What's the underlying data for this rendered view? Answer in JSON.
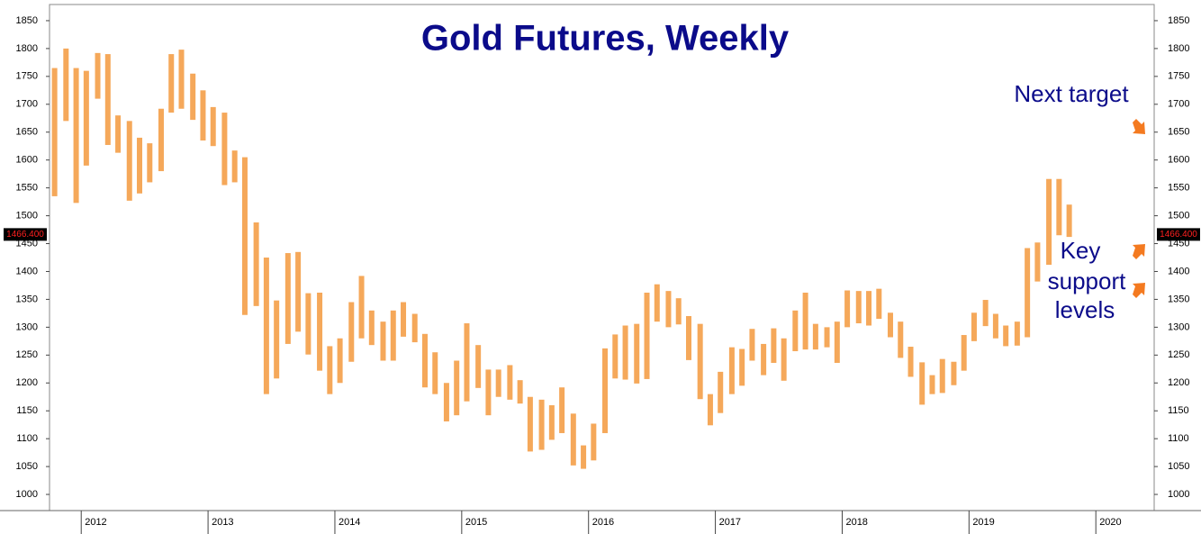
{
  "chart_data": {
    "type": "range-bar",
    "title": "Gold Futures, Weekly",
    "annotations": [
      "Next target",
      "Key",
      "support",
      "levels"
    ],
    "last_price": {
      "value": 1466.4,
      "label": "1466.400"
    },
    "color": "#f5a85a",
    "x": [
      2011.79,
      2011.88,
      2011.96,
      2012.04,
      2012.13,
      2012.21,
      2012.29,
      2012.38,
      2012.46,
      2012.54,
      2012.63,
      2012.71,
      2012.79,
      2012.88,
      2012.96,
      2013.04,
      2013.13,
      2013.21,
      2013.29,
      2013.38,
      2013.46,
      2013.54,
      2013.63,
      2013.71,
      2013.79,
      2013.88,
      2013.96,
      2014.04,
      2014.13,
      2014.21,
      2014.29,
      2014.38,
      2014.46,
      2014.54,
      2014.63,
      2014.71,
      2014.79,
      2014.88,
      2014.96,
      2015.04,
      2015.13,
      2015.21,
      2015.29,
      2015.38,
      2015.46,
      2015.54,
      2015.63,
      2015.71,
      2015.79,
      2015.88,
      2015.96,
      2016.04,
      2016.13,
      2016.21,
      2016.29,
      2016.38,
      2016.46,
      2016.54,
      2016.63,
      2016.71,
      2016.79,
      2016.88,
      2016.96,
      2017.04,
      2017.13,
      2017.21,
      2017.29,
      2017.38,
      2017.46,
      2017.54,
      2017.63,
      2017.71,
      2017.79,
      2017.88,
      2017.96,
      2018.04,
      2018.13,
      2018.21,
      2018.29,
      2018.38,
      2018.46,
      2018.54,
      2018.63,
      2018.71,
      2018.79,
      2018.88,
      2018.96,
      2019.04,
      2019.13,
      2019.21,
      2019.29,
      2019.38,
      2019.46,
      2019.54,
      2019.63,
      2019.71,
      2019.79
    ],
    "high": [
      1765,
      1800,
      1765,
      1760,
      1792,
      1790,
      1680,
      1670,
      1640,
      1630,
      1692,
      1790,
      1798,
      1755,
      1725,
      1695,
      1685,
      1617,
      1605,
      1488,
      1425,
      1348,
      1433,
      1435,
      1361,
      1362,
      1266,
      1280,
      1345,
      1392,
      1330,
      1310,
      1330,
      1345,
      1324,
      1288,
      1255,
      1200,
      1240,
      1307,
      1268,
      1224,
      1224,
      1232,
      1205,
      1175,
      1170,
      1160,
      1192,
      1145,
      1088,
      1127,
      1262,
      1287,
      1303,
      1306,
      1362,
      1377,
      1365,
      1352,
      1320,
      1306,
      1180,
      1220,
      1264,
      1261,
      1297,
      1270,
      1298,
      1280,
      1330,
      1362,
      1306,
      1300,
      1310,
      1366,
      1365,
      1365,
      1369,
      1326,
      1310,
      1265,
      1237,
      1214,
      1243,
      1238,
      1286,
      1326,
      1349,
      1324,
      1303,
      1310,
      1442,
      1452,
      1566,
      1566,
      1520
    ],
    "low": [
      1535,
      1670,
      1523,
      1590,
      1710,
      1627,
      1613,
      1527,
      1540,
      1560,
      1580,
      1685,
      1692,
      1672,
      1635,
      1625,
      1555,
      1560,
      1322,
      1338,
      1180,
      1208,
      1270,
      1292,
      1251,
      1222,
      1180,
      1200,
      1238,
      1280,
      1268,
      1240,
      1240,
      1283,
      1273,
      1192,
      1180,
      1131,
      1142,
      1167,
      1191,
      1142,
      1175,
      1170,
      1163,
      1077,
      1080,
      1098,
      1110,
      1052,
      1046,
      1061,
      1110,
      1208,
      1206,
      1199,
      1207,
      1310,
      1300,
      1305,
      1241,
      1171,
      1124,
      1146,
      1180,
      1195,
      1240,
      1214,
      1236,
      1204,
      1257,
      1260,
      1260,
      1264,
      1236,
      1300,
      1307,
      1303,
      1315,
      1282,
      1245,
      1211,
      1161,
      1180,
      1182,
      1196,
      1222,
      1275,
      1302,
      1280,
      1266,
      1267,
      1282,
      1382,
      1412,
      1465,
      1462
    ],
    "xlim": [
      2011.75,
      2020.46
    ],
    "xticks": [
      2012,
      2013,
      2014,
      2015,
      2016,
      2017,
      2018,
      2019,
      2020
    ],
    "ylim": [
      971,
      1879
    ],
    "yticks": [
      1000,
      1050,
      1100,
      1150,
      1200,
      1250,
      1300,
      1350,
      1400,
      1450,
      1500,
      1550,
      1600,
      1650,
      1700,
      1750,
      1800,
      1850
    ]
  }
}
